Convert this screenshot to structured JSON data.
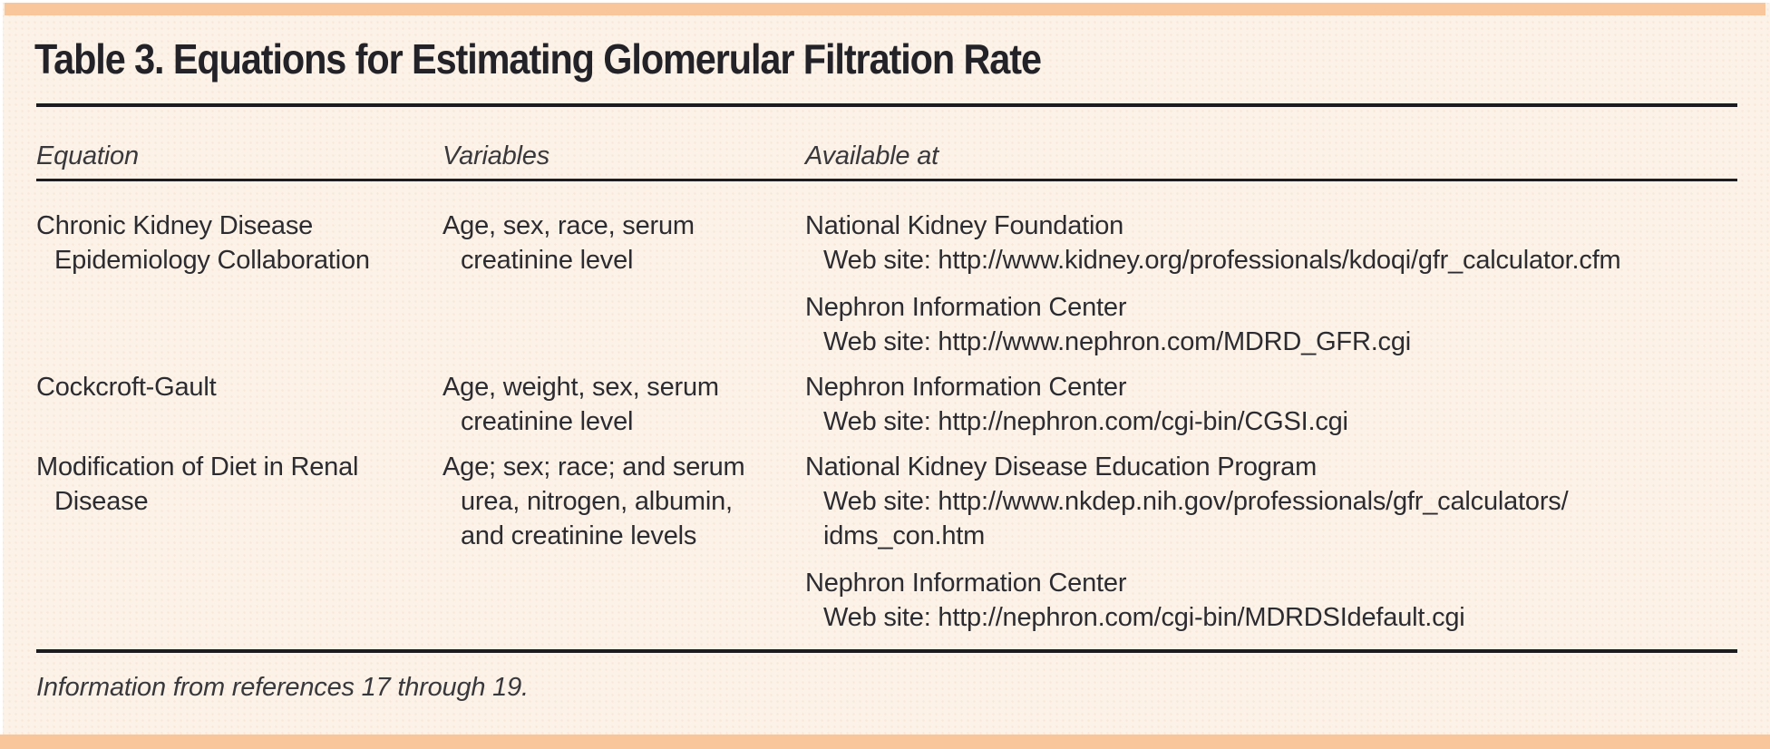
{
  "colors": {
    "band_peach": "#f8c69a",
    "background_cream": "#fcf2e7",
    "rule_black": "#1c1b20",
    "text_dark": "#2c2b31"
  },
  "table": {
    "title": "Table 3. Equations for Estimating Glomerular Filtration Rate",
    "columns": [
      {
        "label": "Equation"
      },
      {
        "label": "Variables"
      },
      {
        "label": "Available at"
      }
    ],
    "rows": [
      {
        "equation": [
          "Chronic Kidney Disease",
          "Epidemiology Collaboration"
        ],
        "variables": [
          "Age, sex, race, serum",
          "creatinine level"
        ],
        "available": [
          {
            "name": "National Kidney Foundation",
            "details": [
              "Web site: http://www.kidney.org/professionals/kdoqi/gfr_calculator.cfm"
            ]
          },
          {
            "name": "Nephron Information Center",
            "details": [
              "Web site: http://www.nephron.com/MDRD_GFR.cgi"
            ]
          }
        ]
      },
      {
        "equation": [
          "Cockcroft-Gault"
        ],
        "variables": [
          "Age, weight, sex, serum",
          "creatinine level"
        ],
        "available": [
          {
            "name": "Nephron Information Center",
            "details": [
              "Web site: http://nephron.com/cgi-bin/CGSI.cgi"
            ]
          }
        ]
      },
      {
        "equation": [
          "Modification of Diet in Renal",
          "Disease"
        ],
        "variables": [
          "Age; sex; race; and serum",
          "urea, nitrogen, albumin,",
          "and creatinine levels"
        ],
        "available": [
          {
            "name": "National Kidney Disease Education Program",
            "details": [
              "Web site: http://www.nkdep.nih.gov/professionals/gfr_calculators/",
              "idms_con.htm"
            ]
          },
          {
            "name": "Nephron Information Center",
            "details": [
              "Web site: http://nephron.com/cgi-bin/MDRDSIdefault.cgi"
            ]
          }
        ]
      }
    ],
    "footnote": "Information from references 17 through 19."
  }
}
